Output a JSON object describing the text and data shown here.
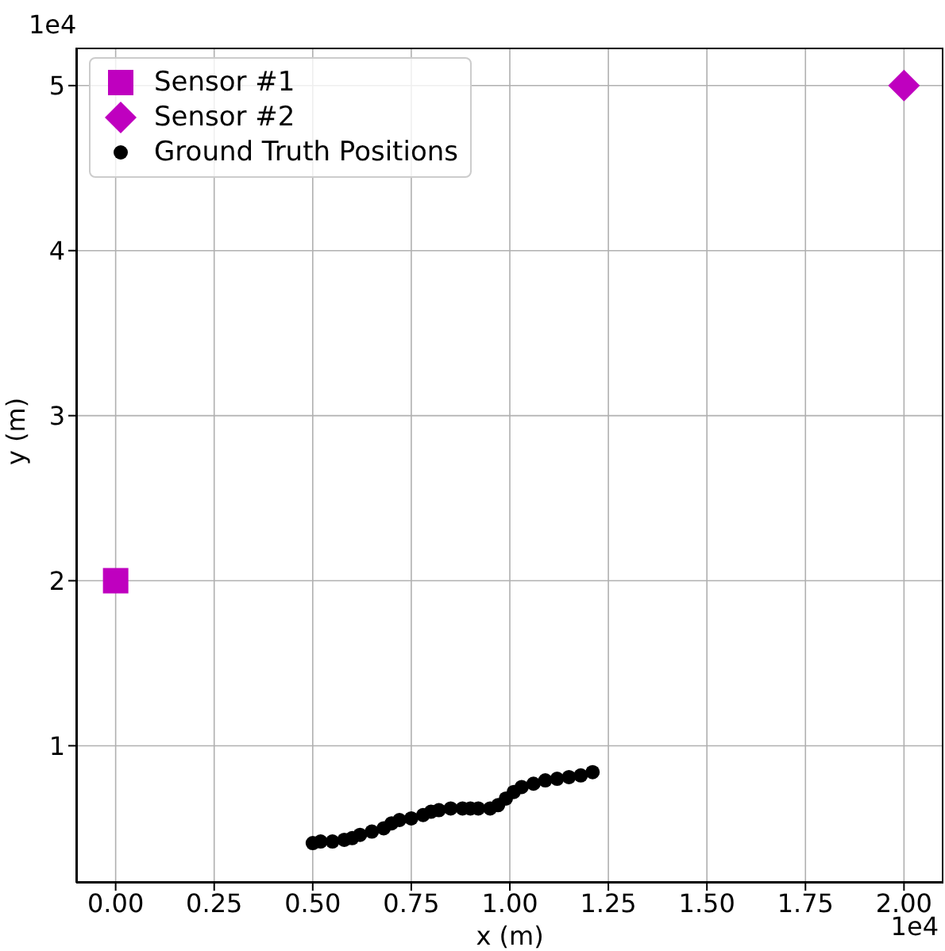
{
  "chart_data": {
    "type": "scatter",
    "xlabel": "x (m)",
    "ylabel": "y (m)",
    "xlim": [
      -0.1,
      2.1
    ],
    "ylim": [
      0.17,
      5.23
    ],
    "xticks": [
      {
        "value": 0,
        "label": "0.00"
      },
      0.25,
      {
        "value": 0.5,
        "label": "0.50"
      },
      0.75,
      {
        "value": 1,
        "label": "1.00"
      },
      1.25,
      {
        "value": 1.5,
        "label": "1.50"
      },
      1.75,
      {
        "value": 2,
        "label": "2.00"
      }
    ],
    "yticks": [
      1,
      2,
      3,
      4,
      5
    ],
    "annotations": [
      "1e4",
      "1e4"
    ],
    "grid": true,
    "legend": "top left",
    "series": [
      {
        "name": "Sensor #1",
        "color": "#bf00bf",
        "marker": "square",
        "x": [
          0
        ],
        "values": [
          2
        ]
      },
      {
        "name": "Sensor #2",
        "color": "#bf00bf",
        "marker": "diamond",
        "x": [
          2
        ],
        "values": [
          5
        ]
      },
      {
        "name": "Ground Truth Positions",
        "color": "#000000",
        "marker": "circle",
        "x": [
          0.5,
          0.52,
          0.55,
          0.58,
          0.6,
          0.62,
          0.65,
          0.68,
          0.7,
          0.72,
          0.75,
          0.78,
          0.8,
          0.82,
          0.85,
          0.88,
          0.9,
          0.92,
          0.95,
          0.97,
          0.99,
          1.01,
          1.03,
          1.06,
          1.09,
          1.12,
          1.15,
          1.18,
          1.21
        ],
        "values": [
          0.41,
          0.42,
          0.42,
          0.43,
          0.44,
          0.46,
          0.48,
          0.5,
          0.53,
          0.55,
          0.56,
          0.58,
          0.6,
          0.61,
          0.62,
          0.62,
          0.62,
          0.62,
          0.62,
          0.64,
          0.68,
          0.72,
          0.75,
          0.77,
          0.79,
          0.8,
          0.81,
          0.82,
          0.84
        ]
      }
    ]
  }
}
